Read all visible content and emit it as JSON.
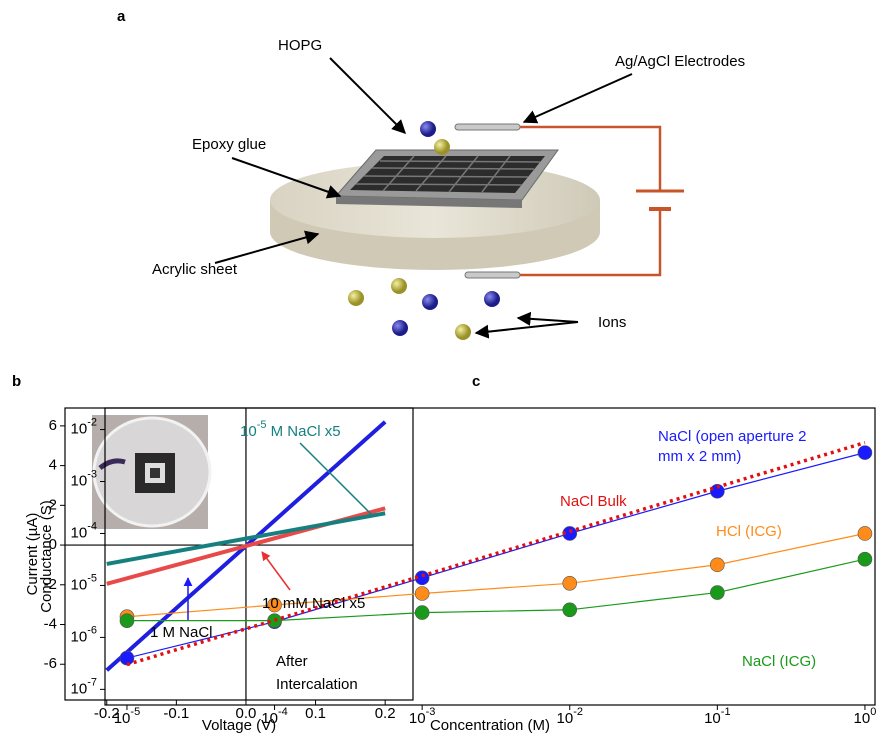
{
  "panels": {
    "a": "a",
    "b": "b",
    "c": "c"
  },
  "schematic": {
    "hopg": "HOPG",
    "electrodes": "Ag/AgCl Electrodes",
    "epoxy": "Epoxy glue",
    "acrylic": "Acrylic sheet",
    "ions": "Ions"
  },
  "chart_data": [
    {
      "type": "line",
      "x_label": "Voltage (V)",
      "y_label": "Current (µA)",
      "xlim": [
        -0.26,
        0.24
      ],
      "ylim": [
        -7.8,
        6.9
      ],
      "xticks": [
        -0.2,
        -0.1,
        {
          "value": 0,
          "label": "0.0"
        },
        0.1,
        0.2
      ],
      "yticks": [
        -6,
        -4,
        -2,
        0,
        2,
        4,
        6
      ],
      "zero_lines": true,
      "x": [
        -0.2,
        0.2
      ],
      "series": [
        {
          "color": "#1f1fe0",
          "values": [
            -6.3,
            6.2
          ]
        },
        {
          "color": "#e84a4a",
          "values": [
            -1.95,
            1.85
          ]
        },
        {
          "color": "#168080",
          "values": [
            -0.95,
            1.6
          ]
        }
      ],
      "annotations": [
        {
          "text": "1 M NaCl",
          "color": "#1a1ae0"
        },
        {
          "text": "10 mM NaCl x5",
          "color": "#e83030"
        },
        {
          "parts": [
            {
              "text": "10"
            },
            {
              "text": "-5",
              "sup": true
            },
            {
              "text": " M NaCl x5"
            }
          ],
          "color": "#168080"
        },
        {
          "text": "After",
          "color": "#000000"
        },
        {
          "text": "Intercalation",
          "color": "#000000"
        }
      ]
    },
    {
      "type": "line",
      "x_label": "Concentration (M)",
      "y_label": "Conductance (S)",
      "xlog": true,
      "ylog": true,
      "xlim": [
        7.1e-06,
        1.17
      ],
      "ylim": [
        5e-08,
        0.026
      ],
      "xticks": [
        {
          "value": 1e-05,
          "label": "10-5"
        },
        {
          "value": 0.0001,
          "label": "10-4"
        },
        {
          "value": 0.001,
          "label": "10-3"
        },
        {
          "value": 0.01,
          "label": "10-2"
        },
        {
          "value": 0.1,
          "label": "10-1"
        },
        {
          "value": 1,
          "label": "100"
        }
      ],
      "yticks": [
        {
          "value": 1e-07,
          "label": "10-7"
        },
        {
          "value": 1e-06,
          "label": "10-6"
        },
        {
          "value": 1e-05,
          "label": "10-5"
        },
        {
          "value": 0.0001,
          "label": "10-4"
        },
        {
          "value": 0.001,
          "label": "10-3"
        },
        {
          "value": 0.01,
          "label": "10-2"
        }
      ],
      "markers": true,
      "x": [
        1e-05,
        0.0001,
        0.001,
        0.01,
        0.1,
        1
      ],
      "series": [
        {
          "name": "NaCl (open aperture 2 mm x 2 mm)",
          "color": "#1a1aff",
          "values": [
            4e-07,
            2e-06,
            1.4e-05,
            0.0001,
            0.00065,
            0.0036
          ]
        },
        {
          "name": "HCl (ICG)",
          "color": "#ff8c1a",
          "values": [
            2.5e-06,
            4.2e-06,
            7e-06,
            1.1e-05,
            2.5e-05,
            0.0001
          ]
        },
        {
          "name": "NaCl (ICG)",
          "color": "#1a9a1a",
          "values": [
            2.1e-06,
            2.1e-06,
            3e-06,
            3.4e-06,
            7.3e-06,
            3.2e-05
          ]
        },
        {
          "name": "NaCl Bulk",
          "color": "#e01010",
          "dotted": true,
          "x": [
            1e-05,
            1
          ],
          "values": [
            3e-07,
            0.0056
          ]
        }
      ]
    }
  ]
}
